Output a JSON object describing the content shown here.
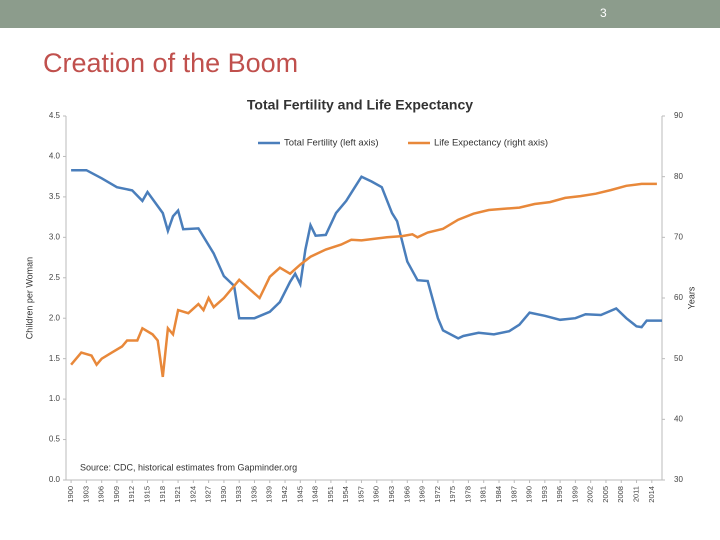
{
  "slide": {
    "number": "3",
    "title": "Creation of the Boom"
  },
  "chart_data": {
    "type": "line",
    "title": "Total Fertility and Life Expectancy",
    "y_label": "Children per Woman",
    "y2_label": "Years",
    "annotation": "Source: CDC, historical estimates  from Gapminder.org",
    "grid": false,
    "legend": "top",
    "xlim": [
      1899,
      2016
    ],
    "xticks": [
      1900,
      1903,
      1906,
      1909,
      1912,
      1915,
      1918,
      1921,
      1924,
      1927,
      1930,
      1933,
      1936,
      1939,
      1942,
      1945,
      1948,
      1951,
      1954,
      1957,
      1960,
      1963,
      1966,
      1969,
      1972,
      1975,
      1978,
      1981,
      1984,
      1987,
      1990,
      1993,
      1996,
      1999,
      2002,
      2005,
      2008,
      2011,
      2014
    ],
    "ylim": [
      0,
      4.5
    ],
    "yticks": [
      {
        "value": 0,
        "label": "0.0"
      },
      {
        "value": 0.5,
        "label": "0.5"
      },
      {
        "value": 1,
        "label": "1.0"
      },
      {
        "value": 1.5,
        "label": "1.5"
      },
      {
        "value": 2,
        "label": "2.0"
      },
      {
        "value": 2.5,
        "label": "2.5"
      },
      {
        "value": 3,
        "label": "3.0"
      },
      {
        "value": 3.5,
        "label": "3.5"
      },
      {
        "value": 4,
        "label": "4.0"
      },
      {
        "value": 4.5,
        "label": "4.5"
      }
    ],
    "y2lim": [
      30,
      90
    ],
    "y2ticks": [
      30,
      40,
      50,
      60,
      70,
      80,
      90
    ],
    "series": [
      {
        "name": "Total Fertility (left axis)",
        "color": "#4a7ebb",
        "x": [
          1900,
          1903,
          1906,
          1909,
          1912,
          1914,
          1915,
          1918,
          1919,
          1920,
          1921,
          1922,
          1925,
          1928,
          1930,
          1932,
          1933,
          1936,
          1939,
          1941,
          1943,
          1944,
          1945,
          1946,
          1947,
          1948,
          1950,
          1952,
          1954,
          1955,
          1957,
          1959,
          1961,
          1963,
          1964,
          1966,
          1968,
          1970,
          1972,
          1973,
          1976,
          1977,
          1980,
          1983,
          1986,
          1988,
          1990,
          1993,
          1996,
          1999,
          2001,
          2004,
          2007,
          2009,
          2011,
          2012,
          2013,
          2016
        ],
        "values": [
          3.83,
          3.83,
          3.73,
          3.62,
          3.58,
          3.45,
          3.56,
          3.3,
          3.08,
          3.26,
          3.33,
          3.1,
          3.11,
          2.8,
          2.52,
          2.4,
          2.0,
          2.0,
          2.08,
          2.2,
          2.45,
          2.55,
          2.42,
          2.85,
          3.15,
          3.02,
          3.03,
          3.3,
          3.45,
          3.55,
          3.75,
          3.69,
          3.62,
          3.3,
          3.2,
          2.7,
          2.47,
          2.46,
          2.0,
          1.85,
          1.75,
          1.78,
          1.82,
          1.8,
          1.84,
          1.92,
          2.07,
          2.03,
          1.98,
          2.0,
          2.05,
          2.04,
          2.12,
          2.0,
          1.9,
          1.89,
          1.97,
          1.97
        ]
      },
      {
        "name": "Life Expectancy (right axis)",
        "color": "#e8883a",
        "axis": "y2",
        "x": [
          1900,
          1902,
          1904,
          1905,
          1906,
          1908,
          1910,
          1911,
          1913,
          1914,
          1916,
          1917,
          1918,
          1919,
          1920,
          1921,
          1923,
          1925,
          1926,
          1927,
          1928,
          1930,
          1932,
          1933,
          1935,
          1937,
          1939,
          1941,
          1943,
          1945,
          1947,
          1950,
          1953,
          1955,
          1957,
          1960,
          1962,
          1965,
          1967,
          1968,
          1970,
          1973,
          1976,
          1979,
          1982,
          1985,
          1988,
          1991,
          1994,
          1997,
          2000,
          2003,
          2006,
          2009,
          2012,
          2015
        ],
        "values": [
          49,
          51,
          50.5,
          49,
          50,
          51,
          52,
          53,
          53,
          55,
          54,
          53,
          47,
          55,
          54,
          58,
          57.5,
          59,
          58,
          60,
          58.5,
          60,
          62,
          63,
          61.5,
          60,
          63.5,
          65,
          64,
          65.5,
          66.8,
          68,
          68.8,
          69.6,
          69.5,
          69.8,
          70,
          70.2,
          70.5,
          70,
          70.8,
          71.4,
          72.9,
          73.9,
          74.5,
          74.7,
          74.9,
          75.5,
          75.8,
          76.5,
          76.8,
          77.2,
          77.8,
          78.5,
          78.8,
          78.8
        ]
      }
    ]
  }
}
